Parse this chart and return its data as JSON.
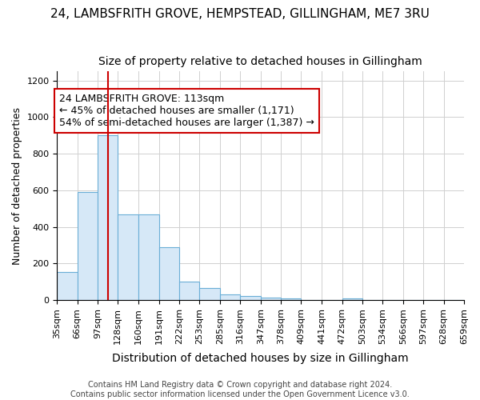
{
  "title_line1": "24, LAMBSFRITH GROVE, HEMPSTEAD, GILLINGHAM, ME7 3RU",
  "title_line2": "Size of property relative to detached houses in Gillingham",
  "xlabel": "Distribution of detached houses by size in Gillingham",
  "ylabel": "Number of detached properties",
  "bin_edges": [
    35,
    66,
    97,
    128,
    160,
    191,
    222,
    253,
    285,
    316,
    347,
    378,
    409,
    441,
    472,
    503,
    534,
    566,
    597,
    628,
    659
  ],
  "bar_heights": [
    155,
    590,
    900,
    470,
    470,
    290,
    100,
    65,
    30,
    20,
    15,
    10,
    0,
    0,
    8,
    0,
    0,
    0,
    0,
    0
  ],
  "bar_color": "#d6e8f7",
  "bar_edgecolor": "#6aaed6",
  "property_size": 113,
  "vline_color": "#cc0000",
  "annotation_text": "24 LAMBSFRITH GROVE: 113sqm\n← 45% of detached houses are smaller (1,171)\n54% of semi-detached houses are larger (1,387) →",
  "annotation_boxcolor": "white",
  "annotation_edgecolor": "#cc0000",
  "ylim": [
    0,
    1250
  ],
  "yticks": [
    0,
    200,
    400,
    600,
    800,
    1000,
    1200
  ],
  "footer_line1": "Contains HM Land Registry data © Crown copyright and database right 2024.",
  "footer_line2": "Contains public sector information licensed under the Open Government Licence v3.0.",
  "background_color": "#ffffff",
  "title1_fontsize": 11,
  "title2_fontsize": 10,
  "ylabel_fontsize": 9,
  "xlabel_fontsize": 10,
  "tick_fontsize": 8,
  "annotation_fontsize": 9,
  "footer_fontsize": 7
}
